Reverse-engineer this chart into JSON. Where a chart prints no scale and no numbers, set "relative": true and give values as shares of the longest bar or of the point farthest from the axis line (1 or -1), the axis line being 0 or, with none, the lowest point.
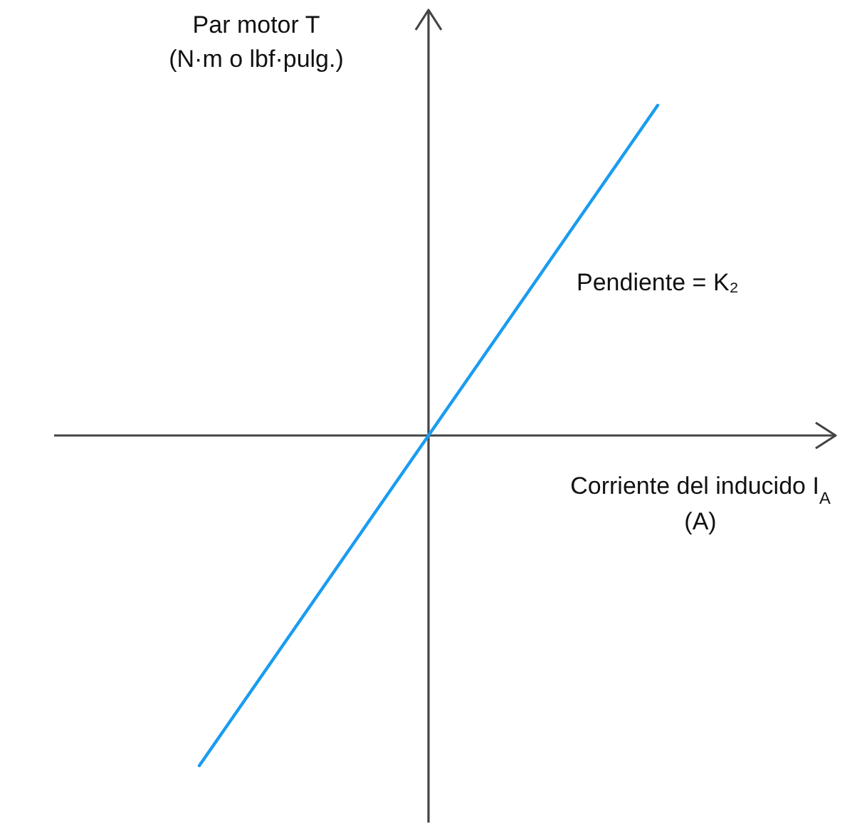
{
  "chart_data": {
    "type": "line",
    "ylabel": "Par motor T\n(N·m o lbf·pulg.)",
    "xlabel": "Corriente del inducido I$_{A}$\n(A)",
    "annotations": [
      "Pendiente = K₂"
    ],
    "categories": [
      null,
      null,
      null
    ],
    "values": [
      -1,
      0,
      1
    ],
    "color": "#1a9cf0",
    "relative": true
  }
}
